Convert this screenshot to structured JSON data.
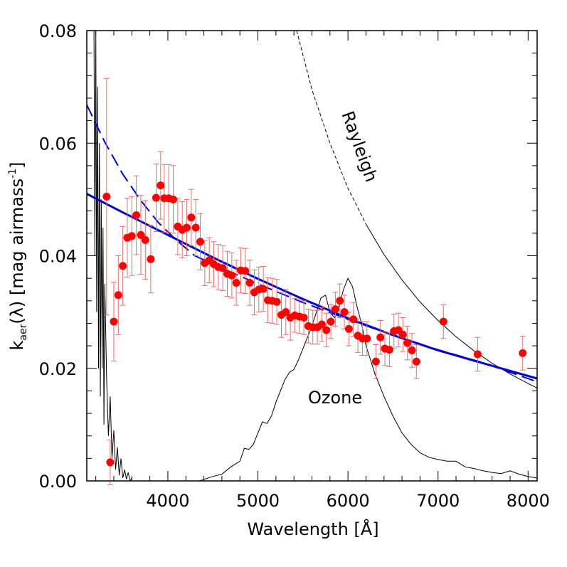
{
  "chart_data": {
    "type": "scatter",
    "xlabel": "Wavelength [Å]",
    "ylabel_main": "k",
    "ylabel_sub": "aer",
    "ylabel_rest": "(λ) [mag airmass",
    "ylabel_sup": "-1",
    "ylabel_end": "]",
    "xlim": [
      3100,
      8100
    ],
    "ylim": [
      0.0,
      0.08
    ],
    "xticks": [
      4000,
      5000,
      6000,
      7000,
      8000
    ],
    "xtick_labels": [
      "4000",
      "5000",
      "6000",
      "7000",
      "8000"
    ],
    "yticks": [
      0.0,
      0.02,
      0.04,
      0.06,
      0.08
    ],
    "ytick_labels": [
      "0.00",
      "0.02",
      "0.04",
      "0.06",
      "0.08"
    ],
    "annotations": [
      {
        "key": "rayleigh",
        "text": "Rayleigh"
      },
      {
        "key": "ozone",
        "text": "Ozone"
      }
    ],
    "colors": {
      "points": "#ff0000",
      "errorbars": "#e07070",
      "fit": "#0000cc",
      "curves": "#000000"
    },
    "series": [
      {
        "name": "measurements",
        "type": "scatter",
        "points": [
          [
            3320,
            0.0505,
            0.021
          ],
          [
            3360,
            0.0033,
            0.004
          ],
          [
            3400,
            0.0283,
            0.007
          ],
          [
            3450,
            0.033,
            0.007
          ],
          [
            3500,
            0.0382,
            0.007
          ],
          [
            3550,
            0.0432,
            0.007
          ],
          [
            3600,
            0.0435,
            0.007
          ],
          [
            3650,
            0.0472,
            0.007
          ],
          [
            3700,
            0.0437,
            0.007
          ],
          [
            3750,
            0.0428,
            0.007
          ],
          [
            3810,
            0.0394,
            0.006
          ],
          [
            3870,
            0.0503,
            0.006
          ],
          [
            3920,
            0.0525,
            0.006
          ],
          [
            3960,
            0.0502,
            0.006
          ],
          [
            4010,
            0.0502,
            0.006
          ],
          [
            4060,
            0.05,
            0.006
          ],
          [
            4110,
            0.0452,
            0.005
          ],
          [
            4160,
            0.0446,
            0.005
          ],
          [
            4210,
            0.045,
            0.005
          ],
          [
            4260,
            0.0468,
            0.005
          ],
          [
            4310,
            0.045,
            0.005
          ],
          [
            4360,
            0.0425,
            0.005
          ],
          [
            4410,
            0.0387,
            0.004
          ],
          [
            4460,
            0.0392,
            0.004
          ],
          [
            4510,
            0.0385,
            0.004
          ],
          [
            4560,
            0.038,
            0.004
          ],
          [
            4610,
            0.0378,
            0.004
          ],
          [
            4660,
            0.0368,
            0.004
          ],
          [
            4710,
            0.0365,
            0.004
          ],
          [
            4760,
            0.0352,
            0.004
          ],
          [
            4810,
            0.0374,
            0.004
          ],
          [
            4860,
            0.0373,
            0.004
          ],
          [
            4910,
            0.0352,
            0.004
          ],
          [
            4960,
            0.0335,
            0.004
          ],
          [
            5010,
            0.034,
            0.004
          ],
          [
            5060,
            0.0341,
            0.004
          ],
          [
            5110,
            0.0321,
            0.004
          ],
          [
            5160,
            0.032,
            0.004
          ],
          [
            5210,
            0.0318,
            0.004
          ],
          [
            5260,
            0.0295,
            0.004
          ],
          [
            5310,
            0.03,
            0.004
          ],
          [
            5360,
            0.029,
            0.004
          ],
          [
            5410,
            0.0294,
            0.003
          ],
          [
            5460,
            0.0292,
            0.003
          ],
          [
            5510,
            0.029,
            0.003
          ],
          [
            5560,
            0.0275,
            0.003
          ],
          [
            5610,
            0.0273,
            0.003
          ],
          [
            5660,
            0.0273,
            0.003
          ],
          [
            5710,
            0.0278,
            0.003
          ],
          [
            5760,
            0.0268,
            0.003
          ],
          [
            5810,
            0.0283,
            0.003
          ],
          [
            5860,
            0.0305,
            0.003
          ],
          [
            5910,
            0.032,
            0.003
          ],
          [
            5960,
            0.03,
            0.003
          ],
          [
            6010,
            0.027,
            0.003
          ],
          [
            6060,
            0.0287,
            0.003
          ],
          [
            6110,
            0.0258,
            0.003
          ],
          [
            6160,
            0.0253,
            0.003
          ],
          [
            6210,
            0.0253,
            0.003
          ],
          [
            6310,
            0.0212,
            0.003
          ],
          [
            6360,
            0.0255,
            0.003
          ],
          [
            6410,
            0.0235,
            0.003
          ],
          [
            6460,
            0.0233,
            0.003
          ],
          [
            6510,
            0.0266,
            0.003
          ],
          [
            6560,
            0.0268,
            0.003
          ],
          [
            6610,
            0.026,
            0.003
          ],
          [
            6660,
            0.0245,
            0.003
          ],
          [
            6710,
            0.0232,
            0.003
          ],
          [
            6760,
            0.0212,
            0.003
          ],
          [
            7060,
            0.0283,
            0.003
          ],
          [
            7440,
            0.0225,
            0.003
          ],
          [
            7940,
            0.0227,
            0.003
          ]
        ]
      },
      {
        "name": "fit",
        "type": "line",
        "style": "solid",
        "color": "#0000cc",
        "x": [
          3100,
          3500,
          4000,
          4500,
          5000,
          5500,
          6000,
          6500,
          7000,
          7500,
          8100
        ],
        "y": [
          0.051,
          0.0477,
          0.0437,
          0.0397,
          0.0359,
          0.0323,
          0.0289,
          0.0259,
          0.0232,
          0.0209,
          0.0182
        ]
      },
      {
        "name": "fit-extrapolation",
        "type": "line",
        "style": "dashed",
        "color": "#0000cc",
        "x": [
          3100,
          3300,
          3500,
          3700,
          3900,
          4100,
          4300,
          4600,
          5000,
          5500,
          6000,
          6500,
          7000,
          7500,
          8100
        ],
        "y": [
          0.0668,
          0.0602,
          0.0545,
          0.0498,
          0.0458,
          0.0427,
          0.04,
          0.0378,
          0.035,
          0.0317,
          0.0287,
          0.0259,
          0.0233,
          0.021,
          0.0176
        ]
      },
      {
        "name": "rayleigh",
        "type": "line",
        "color": "#000000",
        "x": [
          5430,
          5600,
          5800,
          6000,
          6200,
          6400,
          6600,
          6800,
          7000,
          7200,
          7400,
          7600,
          7800,
          8000,
          8100
        ],
        "y": [
          0.08,
          0.0695,
          0.06,
          0.052,
          0.0456,
          0.0402,
          0.0357,
          0.0318,
          0.0285,
          0.0256,
          0.0231,
          0.0209,
          0.019,
          0.0173,
          0.0165
        ]
      },
      {
        "name": "ozone",
        "type": "line",
        "color": "#000000",
        "x": [
          4350,
          4500,
          4600,
          4700,
          4800,
          4850,
          4900,
          4950,
          5000,
          5050,
          5100,
          5150,
          5200,
          5250,
          5300,
          5350,
          5400,
          5450,
          5500,
          5550,
          5600,
          5650,
          5700,
          5750,
          5800,
          5850,
          5900,
          5950,
          6000,
          6050,
          6100,
          6150,
          6200,
          6300,
          6400,
          6500,
          6600,
          6700,
          6800,
          6900,
          7000,
          7100,
          7200,
          7300,
          7400,
          7500,
          7600,
          7700,
          7800,
          7900,
          8000,
          8100
        ],
        "y": [
          0.0,
          0.0008,
          0.0012,
          0.0025,
          0.0035,
          0.0058,
          0.0056,
          0.0065,
          0.0085,
          0.0105,
          0.0102,
          0.0115,
          0.014,
          0.016,
          0.018,
          0.0193,
          0.0198,
          0.0215,
          0.0235,
          0.0255,
          0.0275,
          0.03,
          0.0325,
          0.033,
          0.03,
          0.029,
          0.031,
          0.034,
          0.036,
          0.0345,
          0.031,
          0.028,
          0.024,
          0.019,
          0.015,
          0.0115,
          0.0085,
          0.0065,
          0.005,
          0.0042,
          0.0038,
          0.0035,
          0.0035,
          0.0025,
          0.0022,
          0.0018,
          0.0015,
          0.0013,
          0.0018,
          0.0012,
          0.0008,
          0.0005
        ]
      },
      {
        "name": "uv-cutoff",
        "type": "line",
        "color": "#000000",
        "x": [
          3180,
          3190,
          3200,
          3210,
          3220,
          3230,
          3240,
          3250,
          3260,
          3270,
          3280,
          3290,
          3300,
          3320,
          3340,
          3360,
          3380,
          3400,
          3420,
          3440,
          3460,
          3480,
          3500,
          3520,
          3540,
          3560,
          3580,
          3600
        ],
        "y": [
          0.08,
          0.04,
          0.08,
          0.03,
          0.07,
          0.02,
          0.06,
          0.015,
          0.05,
          0.02,
          0.045,
          0.01,
          0.035,
          0.018,
          0.008,
          0.015,
          0.004,
          0.009,
          0.002,
          0.006,
          0.001,
          0.004,
          0.0005,
          0.002,
          0.0003,
          0.0015,
          0.0,
          0.0005
        ]
      }
    ]
  }
}
